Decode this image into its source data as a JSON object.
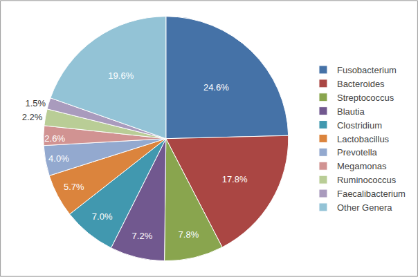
{
  "chart_data": {
    "type": "pie",
    "categories": [
      "Fusobacterium",
      "Bacteroides",
      "Streptococcus",
      "Blautia",
      "Clostridium",
      "Lactobacillus",
      "Prevotella",
      "Megamonas",
      "Ruminococcus",
      "Faecalibacterium",
      "Other Genera"
    ],
    "values": [
      24.6,
      17.8,
      7.8,
      7.2,
      7.0,
      5.7,
      4.0,
      2.6,
      2.2,
      1.5,
      19.6
    ],
    "value_labels": [
      "24.6%",
      "17.8%",
      "7.8%",
      "7.2%",
      "7.0%",
      "5.7%",
      "4.0%",
      "2.6%",
      "2.2%",
      "1.5%",
      "19.6%"
    ],
    "colors": [
      "#4572a7",
      "#aa4643",
      "#89a54e",
      "#71588f",
      "#4198af",
      "#db843d",
      "#93a9cf",
      "#d19392",
      "#b9cd96",
      "#a99bbd",
      "#93c3d6"
    ],
    "data_labels": true,
    "legend": "right"
  }
}
